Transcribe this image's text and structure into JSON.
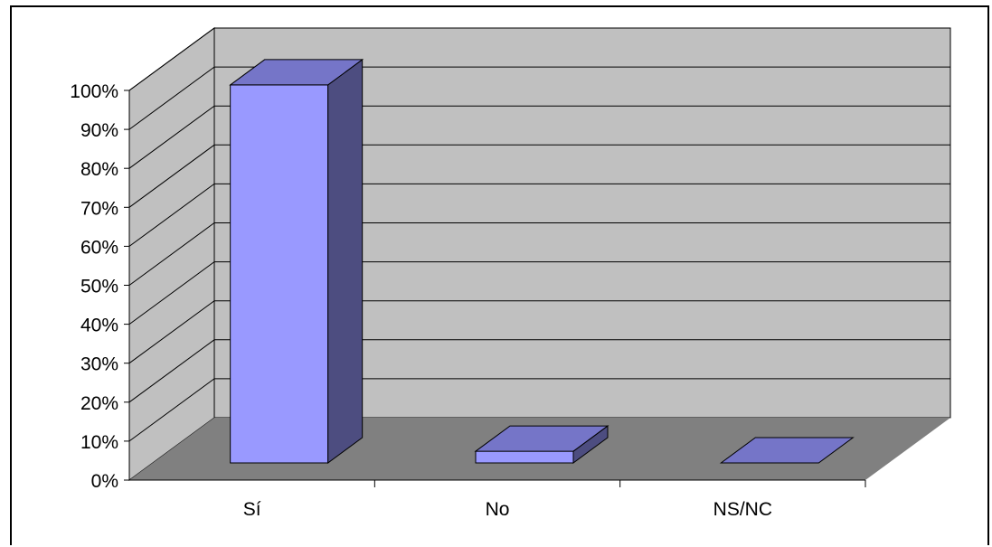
{
  "chart_data": {
    "type": "bar",
    "title": "",
    "xlabel": "",
    "ylabel": "",
    "categories": [
      "Sí",
      "No",
      "NS/NC"
    ],
    "values": [
      97,
      3,
      0
    ],
    "ylim": [
      0,
      100
    ],
    "yticks": [
      "0%",
      "10%",
      "20%",
      "30%",
      "40%",
      "50%",
      "60%",
      "70%",
      "80%",
      "90%",
      "100%"
    ],
    "grid": true,
    "legend": "none",
    "three_d": true,
    "colors": {
      "bar_front": "#9999FF",
      "bar_top": "#7575C8",
      "bar_side": "#4D4D80",
      "back_wall": "#C0C0C0",
      "side_wall": "#C0C0C0",
      "floor": "#808080",
      "gridline": "#000000"
    }
  }
}
